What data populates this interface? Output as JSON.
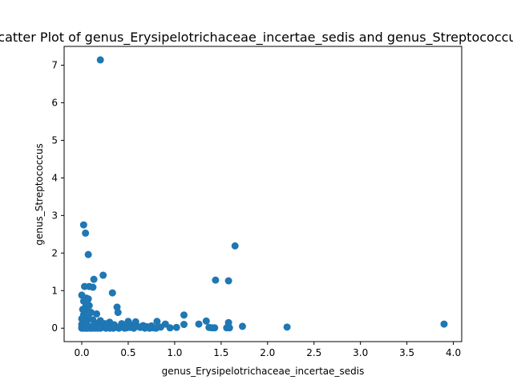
{
  "chart_data": {
    "type": "scatter",
    "title": "Scatter Plot of genus_Erysipelotrichaceae_incertae_sedis and genus_Streptococcus",
    "xlabel": "genus_Erysipelotrichaceae_incertae_sedis",
    "ylabel": "genus_Streptococcus",
    "xlim": [
      -0.19,
      4.09
    ],
    "ylim": [
      -0.357,
      7.5
    ],
    "xticks": [
      0.0,
      0.5,
      1.0,
      1.5,
      2.0,
      2.5,
      3.0,
      3.5,
      4.0
    ],
    "xtick_labels": [
      "0.0",
      "0.5",
      "1.0",
      "1.5",
      "2.0",
      "2.5",
      "3.0",
      "3.5",
      "4.0"
    ],
    "yticks": [
      0,
      1,
      2,
      3,
      4,
      5,
      6,
      7
    ],
    "ytick_labels": [
      "0",
      "1",
      "2",
      "3",
      "4",
      "5",
      "6",
      "7"
    ],
    "grid": false,
    "marker_color": "#1f77b4",
    "points": [
      [
        0.2,
        7.14
      ],
      [
        0.02,
        2.75
      ],
      [
        0.04,
        2.53
      ],
      [
        0.07,
        1.96
      ],
      [
        1.65,
        2.19
      ],
      [
        0.23,
        1.41
      ],
      [
        0.13,
        1.3
      ],
      [
        1.44,
        1.28
      ],
      [
        1.58,
        1.26
      ],
      [
        0.03,
        1.11
      ],
      [
        0.08,
        1.11
      ],
      [
        0.12,
        1.09
      ],
      [
        0.33,
        0.94
      ],
      [
        0.0,
        0.88
      ],
      [
        0.05,
        0.8
      ],
      [
        0.07,
        0.78
      ],
      [
        0.02,
        0.72
      ],
      [
        0.06,
        0.66
      ],
      [
        0.08,
        0.6
      ],
      [
        0.04,
        0.56
      ],
      [
        0.38,
        0.56
      ],
      [
        0.01,
        0.5
      ],
      [
        0.05,
        0.46
      ],
      [
        0.1,
        0.42
      ],
      [
        0.39,
        0.42
      ],
      [
        0.16,
        0.38
      ],
      [
        0.02,
        0.36
      ],
      [
        1.1,
        0.35
      ],
      [
        0.03,
        0.3
      ],
      [
        0.07,
        0.28
      ],
      [
        0.0,
        0.25
      ],
      [
        0.12,
        0.22
      ],
      [
        0.2,
        0.2
      ],
      [
        0.01,
        0.2
      ],
      [
        1.34,
        0.19
      ],
      [
        0.5,
        0.18
      ],
      [
        0.58,
        0.17
      ],
      [
        0.81,
        0.18
      ],
      [
        0.3,
        0.16
      ],
      [
        1.58,
        0.15
      ],
      [
        0.05,
        0.15
      ],
      [
        0.15,
        0.13
      ],
      [
        0.43,
        0.12
      ],
      [
        0.25,
        0.12
      ],
      [
        0.9,
        0.11
      ],
      [
        3.9,
        0.11
      ],
      [
        1.26,
        0.11
      ],
      [
        1.1,
        0.1
      ],
      [
        0.0,
        0.1
      ],
      [
        0.35,
        0.09
      ],
      [
        0.55,
        0.08
      ],
      [
        0.66,
        0.07
      ],
      [
        0.75,
        0.06
      ],
      [
        0.02,
        0.06
      ],
      [
        0.18,
        0.05
      ],
      [
        0.6,
        0.05
      ],
      [
        1.73,
        0.05
      ],
      [
        0.1,
        0.04
      ],
      [
        0.28,
        0.04
      ],
      [
        0.45,
        0.04
      ],
      [
        0.7,
        0.04
      ],
      [
        0.85,
        0.03
      ],
      [
        0.04,
        0.03
      ],
      [
        2.21,
        0.03
      ],
      [
        0.0,
        0.02
      ],
      [
        0.22,
        0.02
      ],
      [
        0.38,
        0.02
      ],
      [
        0.52,
        0.02
      ],
      [
        0.63,
        0.02
      ],
      [
        1.02,
        0.02
      ],
      [
        1.37,
        0.02
      ],
      [
        0.08,
        0.01
      ],
      [
        0.15,
        0.01
      ],
      [
        0.32,
        0.01
      ],
      [
        0.48,
        0.01
      ],
      [
        0.77,
        0.01
      ],
      [
        0.95,
        0.01
      ],
      [
        1.4,
        0.01
      ],
      [
        1.43,
        0.01
      ],
      [
        1.56,
        0.01
      ],
      [
        1.59,
        0.01
      ],
      [
        0.0,
        0.0
      ],
      [
        0.01,
        0.0
      ],
      [
        0.03,
        0.0
      ],
      [
        0.05,
        0.0
      ],
      [
        0.06,
        0.0
      ],
      [
        0.09,
        0.0
      ],
      [
        0.11,
        0.0
      ],
      [
        0.14,
        0.0
      ],
      [
        0.17,
        0.0
      ],
      [
        0.2,
        0.0
      ],
      [
        0.26,
        0.0
      ],
      [
        0.3,
        0.0
      ],
      [
        0.34,
        0.0
      ],
      [
        0.4,
        0.0
      ],
      [
        0.46,
        0.0
      ],
      [
        0.56,
        0.0
      ],
      [
        0.68,
        0.0
      ],
      [
        0.73,
        0.0
      ],
      [
        0.8,
        0.0
      ]
    ]
  }
}
